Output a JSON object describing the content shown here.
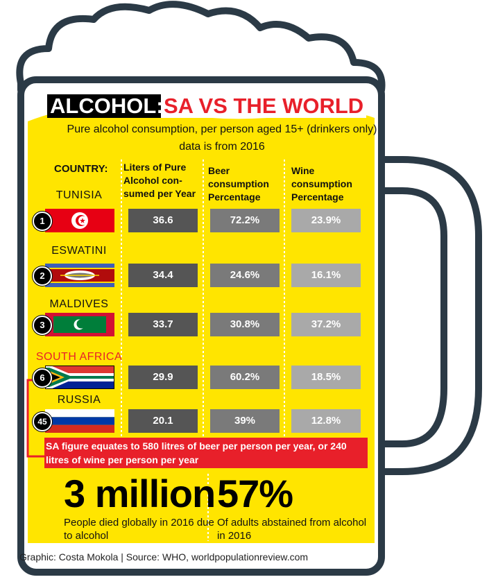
{
  "title": {
    "highlight": "ALCOHOL:",
    "rest": "SA VS THE WORLD"
  },
  "subtitle": "Pure alcohol consumption, per person aged 15+ (drinkers only)",
  "subtitle2": "data is from 2016",
  "columns": {
    "country": "COUNTRY:",
    "liters": [
      "Liters of Pure",
      "Alcohol con-",
      "sumed per Year"
    ],
    "beer": [
      "Beer",
      "consumption",
      "Percentage"
    ],
    "wine": [
      "Wine",
      "consumption",
      "Percentage"
    ]
  },
  "rows": [
    {
      "country": "TUNISIA",
      "rank": "1",
      "liters": "36.6",
      "beer": "72.2%",
      "wine": "23.9%",
      "highlight": false
    },
    {
      "country": "ESWATINI",
      "rank": "2",
      "liters": "34.4",
      "beer": "24.6%",
      "wine": "16.1%",
      "highlight": false
    },
    {
      "country": "MALDIVES",
      "rank": "3",
      "liters": "33.7",
      "beer": "30.8%",
      "wine": "37.2%",
      "highlight": false
    },
    {
      "country": "SOUTH AFRICA",
      "rank": "6",
      "liters": "29.9",
      "beer": "60.2%",
      "wine": "18.5%",
      "highlight": true
    },
    {
      "country": "RUSSIA",
      "rank": "45",
      "liters": "20.1",
      "beer": "39%",
      "wine": "12.8%",
      "highlight": false
    }
  ],
  "note": "SA figure equates to 580 litres of beer per person per year, or 240 litres of wine per person per year",
  "stats": [
    {
      "value": "3 million",
      "text": [
        "People died globally in 2016 due",
        "to alcohol"
      ]
    },
    {
      "value": "57%",
      "text": [
        "Of adults abstained from alcohol",
        "in 2016"
      ]
    }
  ],
  "credit": "Graphic: Costa Mokola | Source: WHO, worldpopulationreview.com",
  "colors": {
    "mug_yellow": "#ffe500",
    "mug_outline": "#2b3a46",
    "accent_red": "#e8202a",
    "cell_dark": "#555555",
    "cell_mid": "#7a7a7a",
    "cell_light": "#a9a9a9"
  },
  "chart_data": {
    "type": "table",
    "title": "ALCOHOL: SA VS THE WORLD",
    "columns": [
      "COUNTRY:",
      "Liters of Pure Alcohol consumed per Year",
      "Beer consumption Percentage",
      "Wine consumption Percentage"
    ],
    "categories": [
      "TUNISIA",
      "ESWATINI",
      "MALDIVES",
      "SOUTH AFRICA",
      "RUSSIA"
    ],
    "ranks": [
      1,
      2,
      3,
      6,
      45
    ],
    "series": [
      {
        "name": "Liters of Pure Alcohol consumed per Year",
        "values": [
          36.6,
          34.4,
          33.7,
          29.9,
          20.1
        ]
      },
      {
        "name": "Beer consumption Percentage",
        "values": [
          72.2,
          24.6,
          30.8,
          60.2,
          39
        ]
      },
      {
        "name": "Wine consumption Percentage",
        "values": [
          23.9,
          16.1,
          37.2,
          18.5,
          12.8
        ]
      }
    ]
  }
}
